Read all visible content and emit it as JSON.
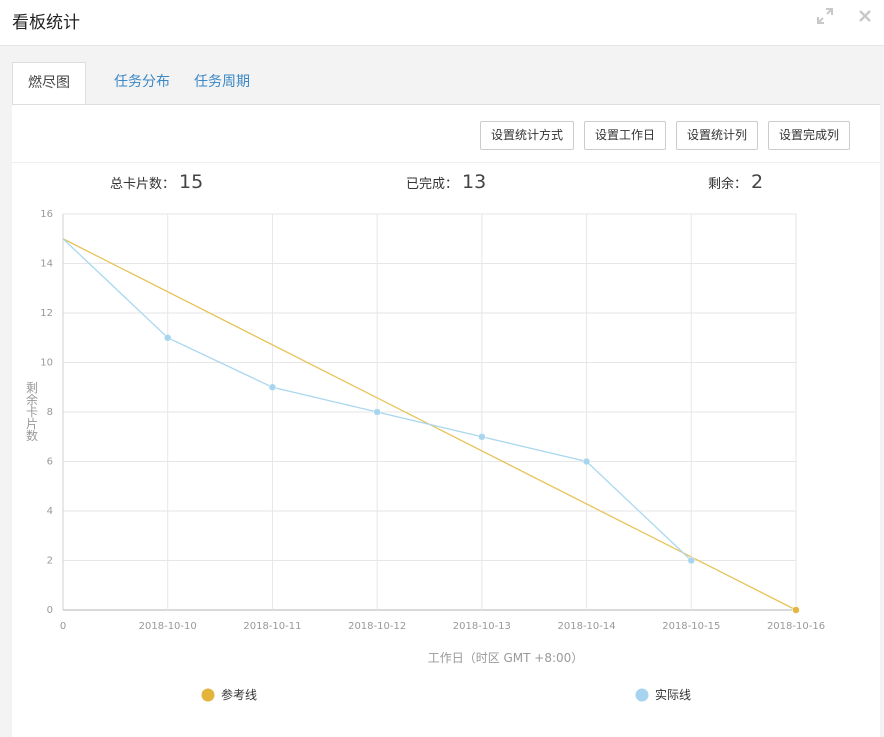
{
  "header": {
    "title": "看板统计",
    "icons": [
      "expand-icon",
      "close-icon"
    ]
  },
  "tabs": [
    {
      "label": "燃尽图",
      "active": true
    },
    {
      "label": "任务分布",
      "active": false
    },
    {
      "label": "任务周期",
      "active": false
    }
  ],
  "toolbar": {
    "buttons": [
      "设置统计方式",
      "设置工作日",
      "设置统计列",
      "设置完成列"
    ]
  },
  "stats": {
    "total_label": "总卡片数：",
    "total_value": "15",
    "done_label": "已完成：",
    "done_value": "13",
    "remain_label": "剩余：",
    "remain_value": "2"
  },
  "chart_data": {
    "type": "line",
    "categories": [
      "0",
      "2018-10-10",
      "2018-10-11",
      "2018-10-12",
      "2018-10-13",
      "2018-10-14",
      "2018-10-15",
      "2018-10-16"
    ],
    "series": [
      {
        "name": "参考线",
        "values": [
          15,
          null,
          null,
          null,
          null,
          null,
          null,
          0
        ],
        "color": "#e8c35a",
        "point_color": "#e3b43a"
      },
      {
        "name": "实际线",
        "values": [
          15,
          11,
          9,
          8,
          7,
          6,
          2,
          null
        ],
        "color": "#a9d8ef",
        "point_color": "#a6d4ee"
      }
    ],
    "ylabel": "剩余卡片数",
    "xlabel": "工作日（时区 GMT +8:00）",
    "ylim": [
      0,
      16
    ],
    "yticks": [
      0,
      2,
      4,
      6,
      8,
      10,
      12,
      14,
      16
    ],
    "grid": true,
    "legend_position": "bottom"
  }
}
